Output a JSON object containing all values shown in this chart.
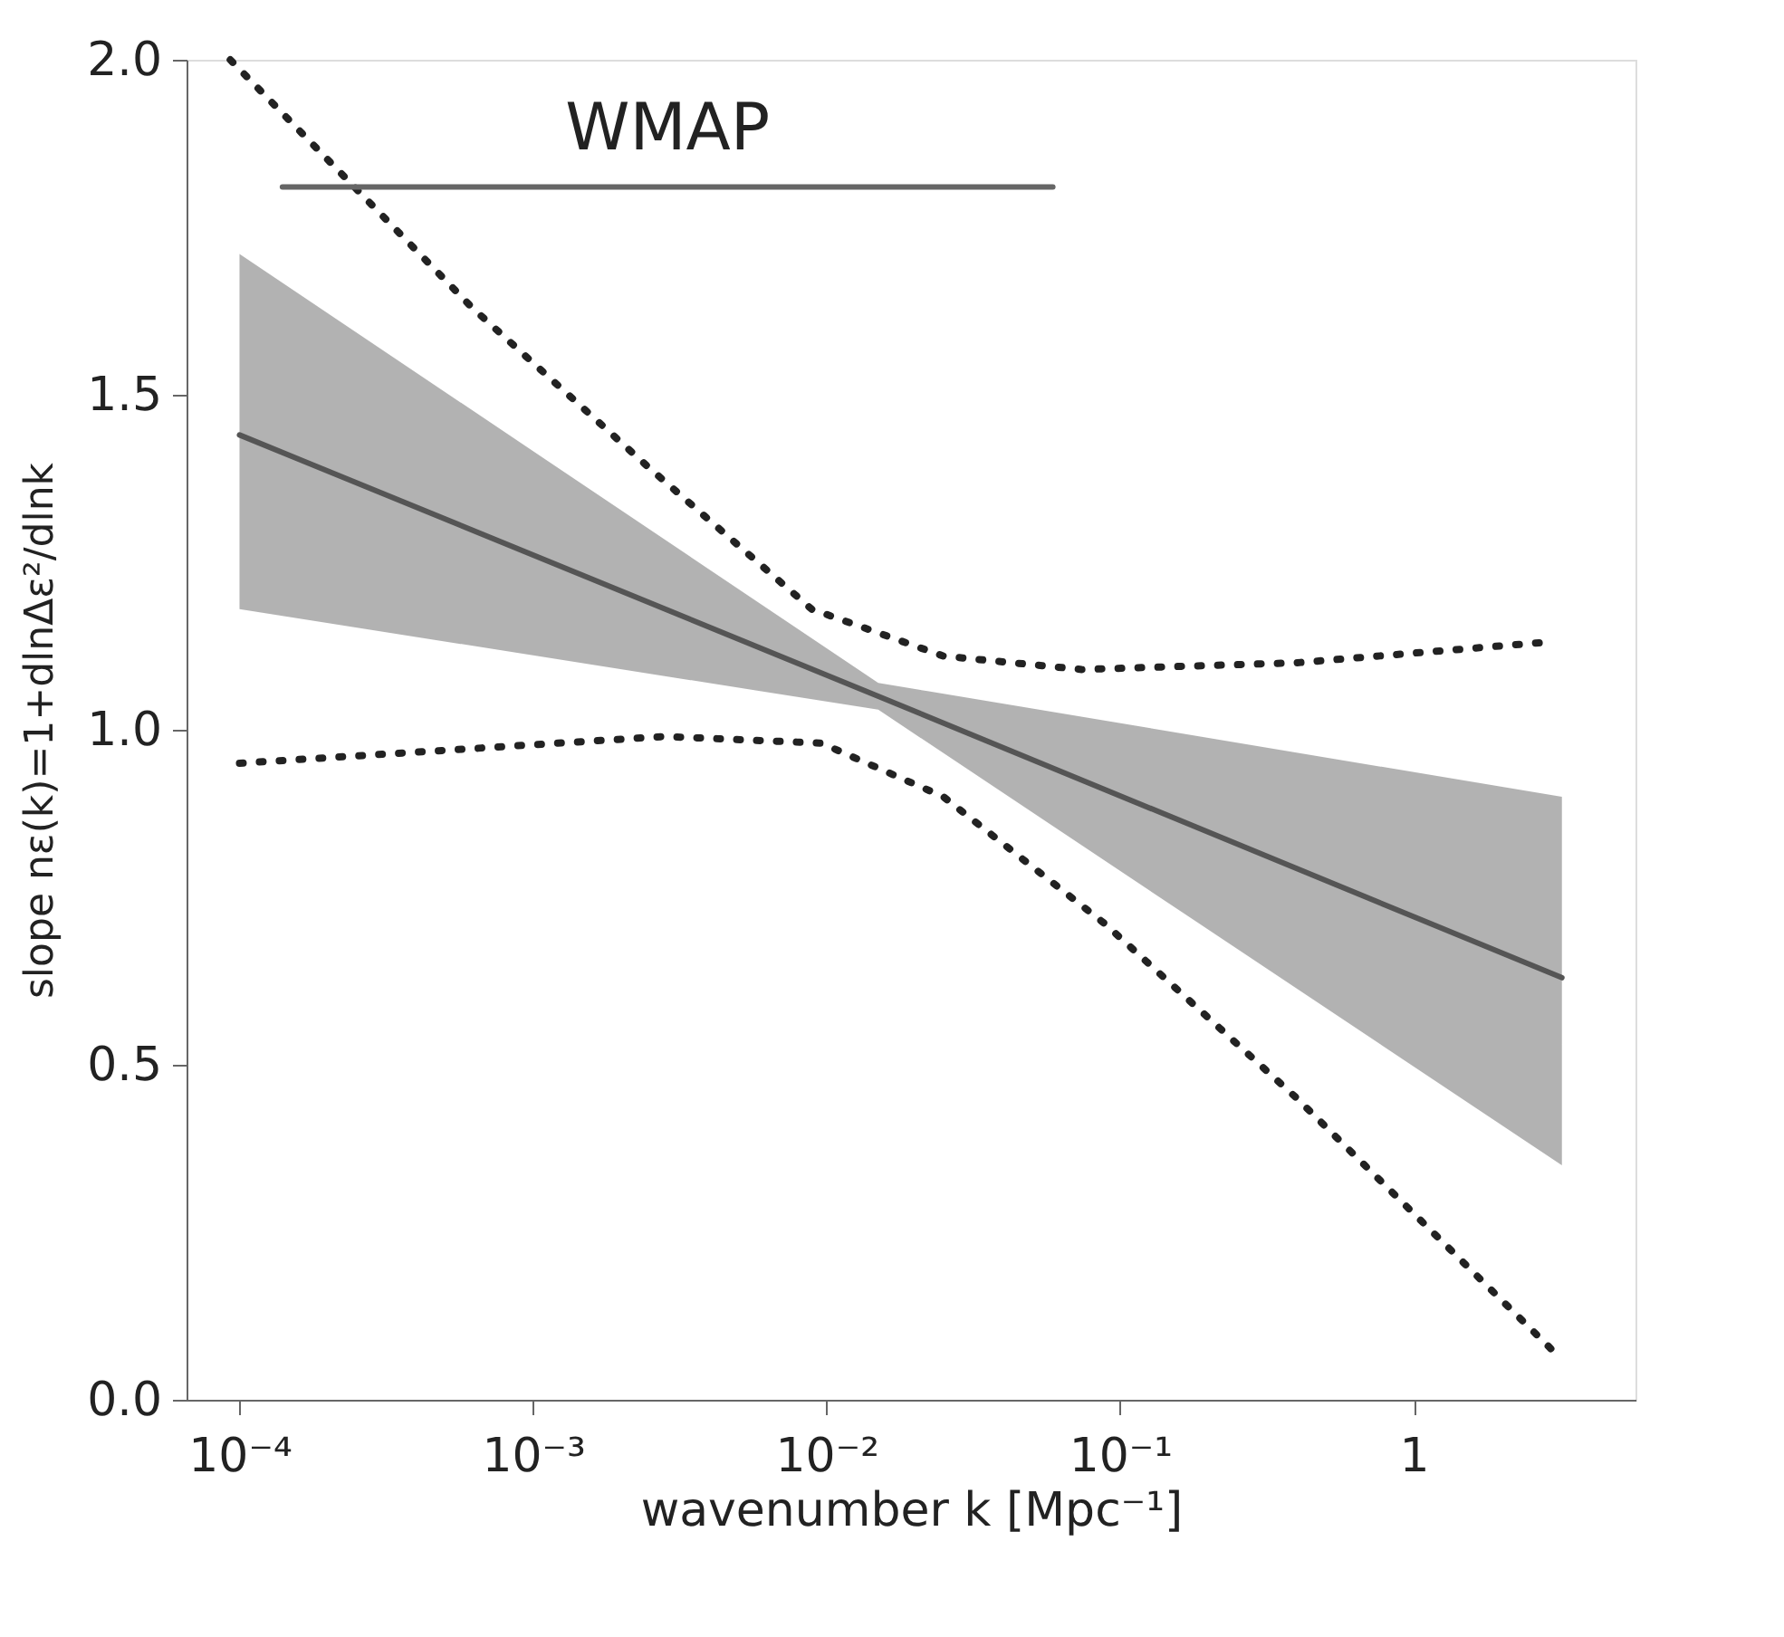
{
  "chart_data": {
    "type": "line",
    "xlabel": "wavenumber k [Mpc⁻¹]",
    "ylabel": "slope nε(k)=1+dlnΔε²/dlnk",
    "log": "x",
    "grid": false,
    "legend": false,
    "marker": "none",
    "xlim": [
      6.6e-05,
      5.7
    ],
    "xticks": [
      {
        "value": 0.0001,
        "label": "10⁻⁴"
      },
      {
        "value": 0.001,
        "label": "10⁻³"
      },
      {
        "value": 0.01,
        "label": "10⁻²"
      },
      {
        "value": 0.1,
        "label": "10⁻¹"
      },
      1
    ],
    "ylim": [
      0,
      2
    ],
    "yticks": [
      {
        "value": 0,
        "label": "0.0"
      },
      {
        "value": 0.5,
        "label": "0.5"
      },
      {
        "value": 1,
        "label": "1.0"
      },
      {
        "value": 1.5,
        "label": "1.5"
      },
      {
        "value": 2,
        "label": "2.0"
      }
    ],
    "series": [
      {
        "color": "#555555",
        "line_style": "solid",
        "x": [
          0.0001,
          0.015,
          3.2
        ],
        "values": [
          1.44,
          1.05,
          0.63
        ],
        "lower": [
          1.18,
          1.03,
          0.35
        ],
        "upper": [
          1.71,
          1.07,
          0.9
        ]
      },
      {
        "color": "#222222",
        "line_style": "dotted",
        "x": [
          9.3e-05,
          0.00062,
          0.0025,
          0.0089,
          0.025,
          0.074,
          0.4,
          2.7
        ],
        "values": [
          2.0,
          1.63,
          1.39,
          1.18,
          1.11,
          1.09,
          1.1,
          1.13
        ]
      },
      {
        "color": "#222222",
        "line_style": "dotted",
        "x": [
          0.0001,
          0.0028,
          0.0096,
          0.025,
          0.089,
          0.4,
          3.2
        ],
        "values": [
          0.95,
          0.99,
          0.98,
          0.9,
          0.71,
          0.45,
          0.06
        ]
      },
      {
        "name": "WMAP",
        "color": "#666666",
        "line_style": "solid",
        "x": [
          0.00014,
          0.059
        ],
        "values": [
          1.81,
          1.81
        ]
      }
    ]
  }
}
